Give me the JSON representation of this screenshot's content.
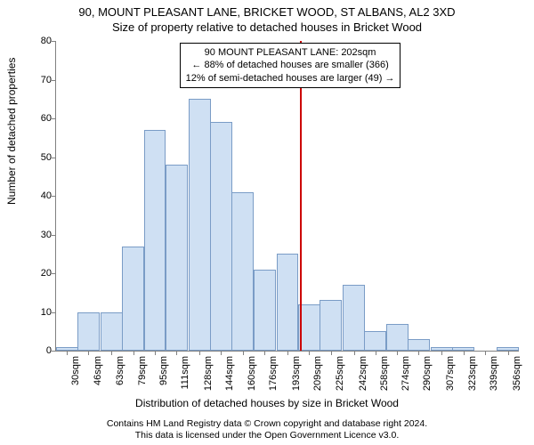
{
  "title": {
    "line1": "90, MOUNT PLEASANT LANE, BRICKET WOOD, ST ALBANS, AL2 3XD",
    "line2": "Size of property relative to detached houses in Bricket Wood"
  },
  "axes": {
    "ylabel": "Number of detached properties",
    "xlabel": "Distribution of detached houses by size in Bricket Wood",
    "ylabel_fontsize": 12,
    "xlabel_fontsize": 12
  },
  "footer": {
    "line1": "Contains HM Land Registry data © Crown copyright and database right 2024.",
    "line2": "This data is licensed under the Open Government Licence v3.0."
  },
  "annotation": {
    "line1": "90 MOUNT PLEASANT LANE: 202sqm",
    "line2": "← 88% of detached houses are smaller (366)",
    "line3": "12% of semi-detached houses are larger (49) →",
    "marker_x_value": 202,
    "marker_color": "#cc0000",
    "box_border_color": "#000000",
    "box_bg_color": "#ffffff",
    "fontsize": 11
  },
  "chart": {
    "type": "histogram",
    "background_color": "#ffffff",
    "bar_fill_color": "#cfe0f3",
    "bar_border_color": "#7a9cc6",
    "axis_color": "#808080",
    "x_range": [
      22,
      364
    ],
    "ylim": [
      0,
      80
    ],
    "ytick_step": 10,
    "yticks": [
      0,
      10,
      20,
      30,
      40,
      50,
      60,
      70,
      80
    ],
    "xticklabels": [
      "30sqm",
      "46sqm",
      "63sqm",
      "79sqm",
      "95sqm",
      "111sqm",
      "128sqm",
      "144sqm",
      "160sqm",
      "176sqm",
      "193sqm",
      "209sqm",
      "225sqm",
      "242sqm",
      "258sqm",
      "274sqm",
      "290sqm",
      "307sqm",
      "323sqm",
      "339sqm",
      "356sqm"
    ],
    "xtick_values": [
      30,
      46,
      63,
      79,
      95,
      111,
      128,
      144,
      160,
      176,
      193,
      209,
      225,
      242,
      258,
      274,
      290,
      307,
      323,
      339,
      356
    ],
    "xtick_rotation_deg": 90,
    "tick_fontsize": 11,
    "bar_width_value": 16.3,
    "bars": [
      {
        "x": 30,
        "height": 1
      },
      {
        "x": 46,
        "height": 10
      },
      {
        "x": 63,
        "height": 10
      },
      {
        "x": 79,
        "height": 27
      },
      {
        "x": 95,
        "height": 57
      },
      {
        "x": 111,
        "height": 48
      },
      {
        "x": 128,
        "height": 65
      },
      {
        "x": 144,
        "height": 59
      },
      {
        "x": 160,
        "height": 41
      },
      {
        "x": 176,
        "height": 21
      },
      {
        "x": 193,
        "height": 25
      },
      {
        "x": 209,
        "height": 12
      },
      {
        "x": 225,
        "height": 13
      },
      {
        "x": 242,
        "height": 17
      },
      {
        "x": 258,
        "height": 5
      },
      {
        "x": 274,
        "height": 7
      },
      {
        "x": 290,
        "height": 3
      },
      {
        "x": 307,
        "height": 1
      },
      {
        "x": 323,
        "height": 1
      },
      {
        "x": 339,
        "height": 0
      },
      {
        "x": 356,
        "height": 1
      }
    ]
  }
}
